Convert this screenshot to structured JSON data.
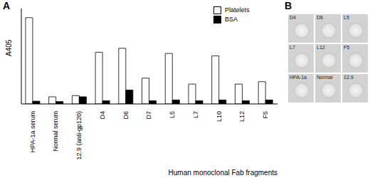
{
  "chart_data": {
    "type": "bar",
    "title": "A",
    "xlabel": "Human monoclonal Fab fragments",
    "ylabel": "A405",
    "categories": [
      "HPA-1a serum",
      "Normal serum",
      "12.9 (anti-gp120)",
      "D4",
      "D6",
      "D7",
      "L5",
      "L7",
      "L10",
      "L12",
      "F5"
    ],
    "series": [
      {
        "name": "Platelets",
        "color": "#ffffff",
        "values": [
          2.17,
          0.18,
          0.21,
          1.3,
          1.4,
          0.65,
          1.27,
          0.5,
          1.21,
          0.5,
          0.56
        ]
      },
      {
        "name": "BSA",
        "color": "#000000",
        "values": [
          0.07,
          0.06,
          0.18,
          0.08,
          0.35,
          0.08,
          0.1,
          0.08,
          0.1,
          0.08,
          0.1
        ]
      }
    ],
    "ylim": [
      0,
      2.4
    ],
    "tick_labels": "x",
    "legend": "upper right"
  },
  "panel_b": {
    "title": "B",
    "wells": [
      "D4",
      "D6",
      "L5",
      "L7",
      "L12",
      "F5",
      "HPA-1a",
      "Normal",
      "12.9"
    ]
  }
}
